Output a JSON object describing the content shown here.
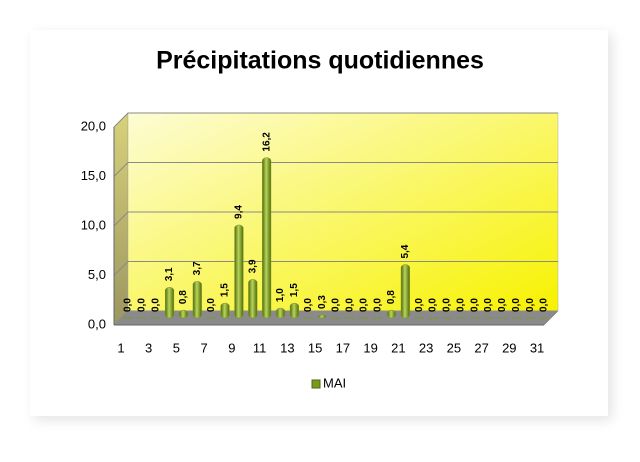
{
  "chart_data": {
    "type": "bar",
    "title": "Précipitations quotidiennes",
    "categories": [
      "1",
      null,
      "3",
      null,
      "5",
      null,
      "7",
      null,
      "9",
      null,
      "11",
      null,
      "13",
      null,
      "15",
      null,
      "17",
      null,
      "19",
      null,
      "21",
      null,
      "23",
      null,
      "25",
      null,
      "27",
      null,
      "29",
      null,
      "31"
    ],
    "series": [
      {
        "name": "MAI",
        "color": "#7a9a1e",
        "values": [
          0.0,
          0.0,
          0.0,
          3.1,
          0.8,
          3.7,
          0.0,
          1.5,
          9.4,
          3.9,
          16.2,
          1.0,
          1.5,
          0.0,
          0.3,
          0.0,
          0.0,
          0.0,
          0.0,
          0.8,
          5.4,
          0.0,
          0.0,
          0.0,
          0.0,
          0.0,
          0.0,
          0.0,
          0.0,
          0.0,
          0.0
        ],
        "value_labels": [
          "0,0",
          "0,0",
          "0,0",
          "3,1",
          "0,8",
          "3,7",
          "0,0",
          "1,5",
          "9,4",
          "3,9",
          "16,2",
          "1,0",
          "1,5",
          "0,0",
          "0,3",
          "0,0",
          "0,0",
          "0,0",
          "0,0",
          "0,8",
          "5,4",
          "0,0",
          "0,0",
          "0,0",
          "0,0",
          "0,0",
          "0,0",
          "0,0",
          "0,0",
          "0,0",
          "0,0"
        ]
      }
    ],
    "ylim": [
      0,
      20
    ],
    "yticks": [
      {
        "value": 0,
        "label": "0,0"
      },
      {
        "value": 5,
        "label": "5,0"
      },
      {
        "value": 10,
        "label": "10,0"
      },
      {
        "value": 15,
        "label": "15,0"
      },
      {
        "value": 20,
        "label": "20,0"
      }
    ],
    "grid": true,
    "legend": "bottom"
  }
}
